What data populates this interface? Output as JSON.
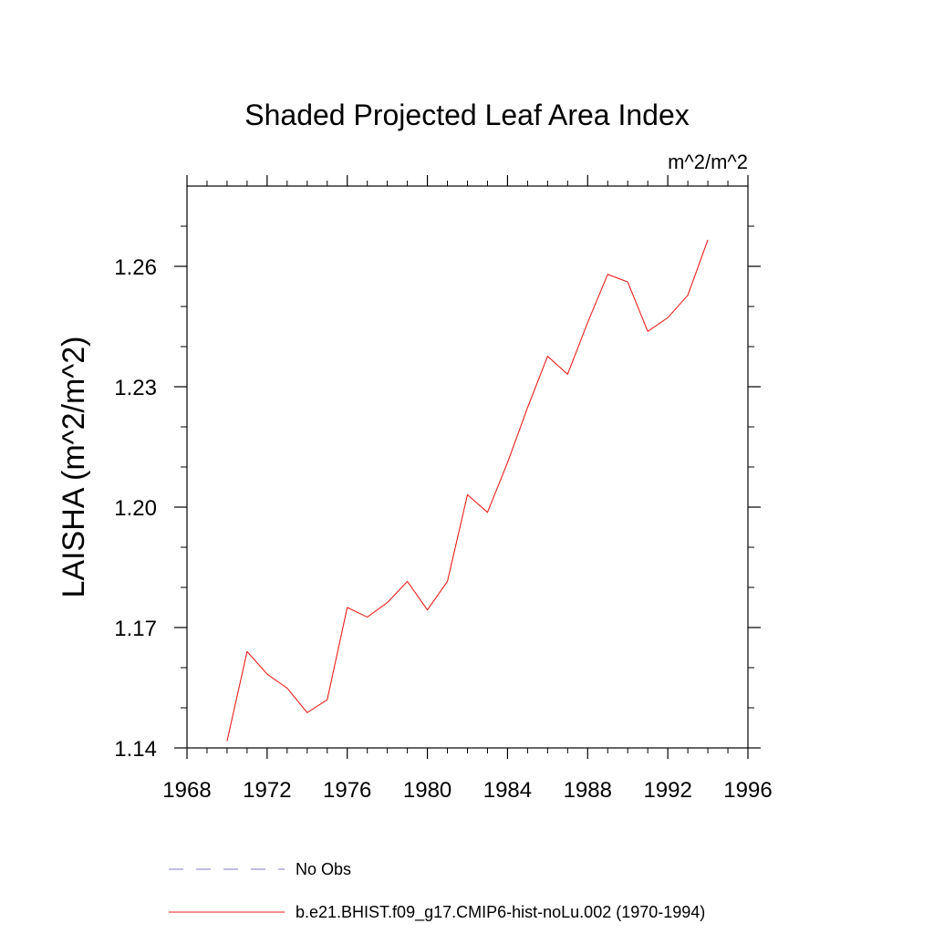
{
  "chart_data": {
    "type": "line",
    "title": "Shaded Projected Leaf Area Index",
    "units_label": "m^2/m^2",
    "xlabel": "",
    "ylabel": "LAISHA  (m^2/m^2)",
    "xlim": [
      1968,
      1996
    ],
    "ylim": [
      1.14,
      1.28
    ],
    "x_ticks": [
      "1968",
      "1972",
      "1976",
      "1980",
      "1984",
      "1988",
      "1992",
      "1996"
    ],
    "y_ticks": [
      "1.14",
      "1.17",
      "1.20",
      "1.23",
      "1.26"
    ],
    "grid": false,
    "legend_position": "bottom",
    "series": [
      {
        "name": "No Obs",
        "color": "#7b7bc8",
        "dash": "dashed",
        "x": [],
        "values": []
      },
      {
        "name": "b.e21.BHIST.f09_g17.CMIP6-hist-noLu.002 (1970-1994)",
        "color": "#e8201c",
        "dash": "solid",
        "x": [
          1970,
          1971,
          1972,
          1973,
          1974,
          1975,
          1976,
          1977,
          1978,
          1979,
          1980,
          1981,
          1982,
          1983,
          1984,
          1985,
          1986,
          1987,
          1988,
          1989,
          1990,
          1991,
          1992,
          1993,
          1994
        ],
        "values": [
          1.1417,
          1.164,
          1.1584,
          1.1549,
          1.1488,
          1.152,
          1.175,
          1.1726,
          1.1762,
          1.1815,
          1.1744,
          1.1815,
          1.2031,
          1.1987,
          1.2111,
          1.2248,
          1.2376,
          1.2331,
          1.246,
          1.258,
          1.2561,
          1.2438,
          1.2472,
          1.2528,
          1.2666
        ]
      }
    ]
  }
}
